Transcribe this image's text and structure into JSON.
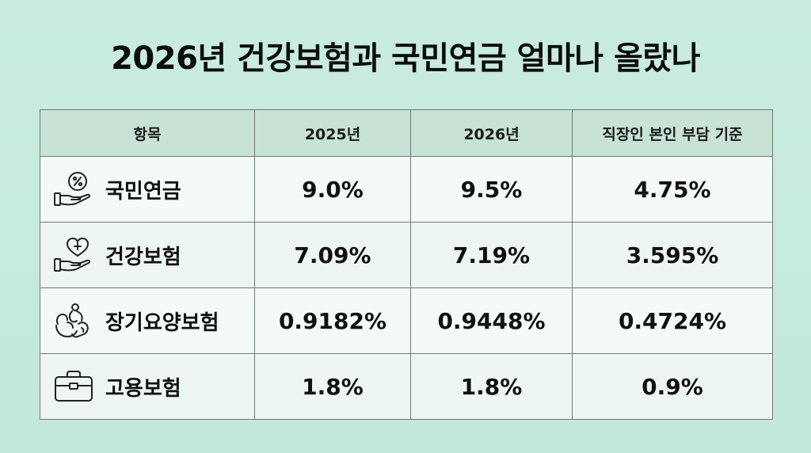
{
  "title": "2026년 건강보험과 국민연금 얼마나 올랐나",
  "table": {
    "headers": [
      "항목",
      "2025년",
      "2026년",
      "직장인 본인 부담 기준"
    ],
    "rows": [
      {
        "icon": "hand-percent-icon",
        "label": "국민연금",
        "y2025": "9.0%",
        "y2026": "9.5%",
        "employee": "4.75%"
      },
      {
        "icon": "hand-heart-plus-icon",
        "label": "건강보험",
        "y2025": "7.09%",
        "y2026": "7.19%",
        "employee": "3.595%"
      },
      {
        "icon": "caregiving-hands-icon",
        "label": "장기요양보험",
        "y2025": "0.9182%",
        "y2026": "0.9448%",
        "employee": "0.4724%"
      },
      {
        "icon": "briefcase-icon",
        "label": "고용보험",
        "y2025": "1.8%",
        "y2026": "1.8%",
        "employee": "0.9%"
      }
    ]
  }
}
